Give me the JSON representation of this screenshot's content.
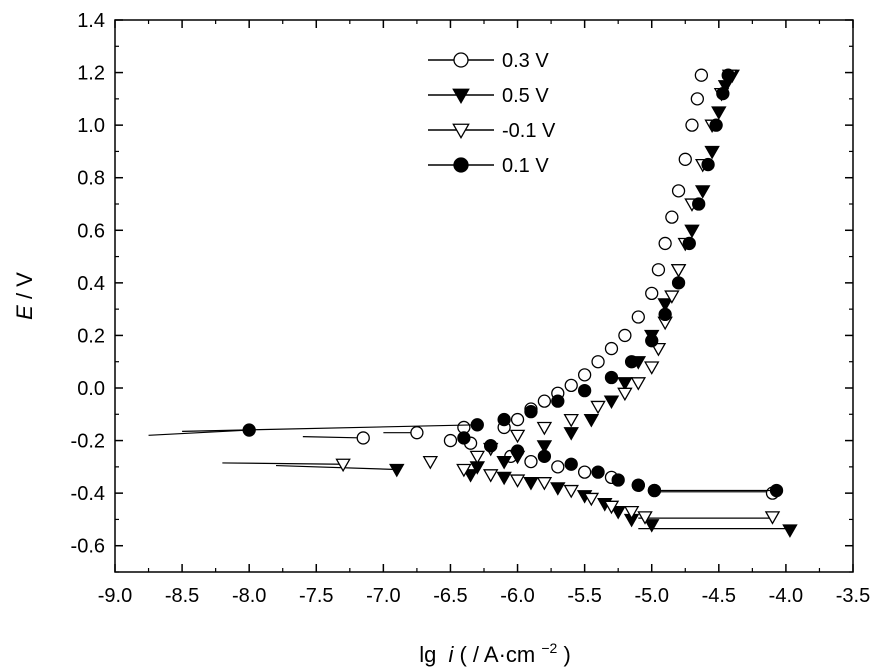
{
  "chart_data": {
    "type": "scatter",
    "xlabel_prefix": "lg",
    "xlabel_mid": "( / A·cm",
    "xlabel_sup": "−2",
    "xlabel_suffix": ")",
    "ylabel_italic": "E",
    "ylabel_rest": " / V",
    "xlim": [
      -9.0,
      -3.5
    ],
    "ylim": [
      -0.7,
      1.4
    ],
    "x_ticks": [
      "-9.0",
      "-8.5",
      "-8.0",
      "-7.5",
      "-7.0",
      "-6.5",
      "-6.0",
      "-5.5",
      "-5.0",
      "-4.5",
      "-4.0",
      "-3.5"
    ],
    "y_ticks": [
      "-0.6",
      "-0.4",
      "-0.2",
      "0.0",
      "0.2",
      "0.4",
      "0.6",
      "0.8",
      "1.0",
      "1.2",
      "1.4"
    ],
    "legend_position": "top-center",
    "series": [
      {
        "name": "0.3 V",
        "marker": "circle-open",
        "points": [
          [
            -7.15,
            -0.19
          ],
          [
            -6.75,
            -0.17
          ],
          [
            -6.5,
            -0.2
          ],
          [
            -6.4,
            -0.15
          ],
          [
            -6.35,
            -0.21
          ],
          [
            -6.1,
            -0.15
          ],
          [
            -6.0,
            -0.12
          ],
          [
            -5.9,
            -0.08
          ],
          [
            -5.8,
            -0.05
          ],
          [
            -5.7,
            -0.02
          ],
          [
            -5.6,
            0.01
          ],
          [
            -5.5,
            0.05
          ],
          [
            -5.4,
            0.1
          ],
          [
            -5.3,
            0.15
          ],
          [
            -5.2,
            0.2
          ],
          [
            -5.1,
            0.27
          ],
          [
            -5.0,
            0.36
          ],
          [
            -4.95,
            0.45
          ],
          [
            -4.9,
            0.55
          ],
          [
            -4.85,
            0.65
          ],
          [
            -4.8,
            0.75
          ],
          [
            -4.75,
            0.87
          ],
          [
            -4.7,
            1.0
          ],
          [
            -4.66,
            1.1
          ],
          [
            -4.63,
            1.19
          ],
          [
            -6.2,
            -0.22
          ],
          [
            -6.05,
            -0.26
          ],
          [
            -5.9,
            -0.28
          ],
          [
            -5.7,
            -0.3
          ],
          [
            -5.5,
            -0.32
          ],
          [
            -5.3,
            -0.34
          ],
          [
            -5.1,
            -0.37
          ],
          [
            -4.98,
            -0.39
          ],
          [
            -4.1,
            -0.4
          ]
        ],
        "tails": [
          {
            "x0": -7.6,
            "y0": -0.185,
            "x1": -7.15,
            "y1": -0.19
          },
          {
            "x0": -7.0,
            "y0": -0.17,
            "x1": -6.75,
            "y1": -0.17
          },
          {
            "x0": -4.98,
            "y0": -0.395,
            "x1": -4.08,
            "y1": -0.395
          }
        ]
      },
      {
        "name": "0.5 V",
        "marker": "triangle-down-filled",
        "points": [
          [
            -6.9,
            -0.31
          ],
          [
            -6.35,
            -0.33
          ],
          [
            -6.3,
            -0.3
          ],
          [
            -6.1,
            -0.28
          ],
          [
            -6.0,
            -0.26
          ],
          [
            -5.8,
            -0.22
          ],
          [
            -5.6,
            -0.17
          ],
          [
            -5.45,
            -0.12
          ],
          [
            -5.3,
            -0.05
          ],
          [
            -5.2,
            0.02
          ],
          [
            -5.1,
            0.1
          ],
          [
            -5.0,
            0.2
          ],
          [
            -4.9,
            0.32
          ],
          [
            -4.8,
            0.45
          ],
          [
            -4.7,
            0.6
          ],
          [
            -4.62,
            0.75
          ],
          [
            -4.55,
            0.9
          ],
          [
            -4.5,
            1.05
          ],
          [
            -4.45,
            1.15
          ],
          [
            -4.4,
            1.19
          ],
          [
            -6.1,
            -0.34
          ],
          [
            -5.9,
            -0.36
          ],
          [
            -5.7,
            -0.38
          ],
          [
            -5.5,
            -0.41
          ],
          [
            -5.35,
            -0.44
          ],
          [
            -5.25,
            -0.47
          ],
          [
            -5.15,
            -0.5
          ],
          [
            -5.0,
            -0.52
          ],
          [
            -3.97,
            -0.54
          ]
        ],
        "tails": [
          {
            "x0": -7.8,
            "y0": -0.295,
            "x1": -6.9,
            "y1": -0.31
          },
          {
            "x0": -5.1,
            "y0": -0.535,
            "x1": -3.97,
            "y1": -0.535
          }
        ]
      },
      {
        "name": "-0.1 V",
        "marker": "triangle-down-open",
        "points": [
          [
            -7.3,
            -0.29
          ],
          [
            -6.65,
            -0.28
          ],
          [
            -6.4,
            -0.31
          ],
          [
            -6.2,
            -0.33
          ],
          [
            -6.0,
            -0.35
          ],
          [
            -5.8,
            -0.36
          ],
          [
            -5.6,
            -0.39
          ],
          [
            -5.45,
            -0.42
          ],
          [
            -5.3,
            -0.45
          ],
          [
            -5.15,
            -0.47
          ],
          [
            -5.05,
            -0.49
          ],
          [
            -4.1,
            -0.49
          ],
          [
            -6.3,
            -0.26
          ],
          [
            -6.2,
            -0.23
          ],
          [
            -6.0,
            -0.18
          ],
          [
            -5.8,
            -0.15
          ],
          [
            -5.6,
            -0.12
          ],
          [
            -5.4,
            -0.07
          ],
          [
            -5.2,
            -0.02
          ],
          [
            -5.1,
            0.02
          ],
          [
            -5.0,
            0.08
          ],
          [
            -4.95,
            0.15
          ],
          [
            -4.9,
            0.25
          ],
          [
            -4.85,
            0.35
          ],
          [
            -4.8,
            0.45
          ],
          [
            -4.75,
            0.55
          ],
          [
            -4.7,
            0.7
          ],
          [
            -4.62,
            0.85
          ],
          [
            -4.55,
            1.0
          ],
          [
            -4.48,
            1.12
          ],
          [
            -4.42,
            1.19
          ]
        ],
        "tails": [
          {
            "x0": -8.2,
            "y0": -0.285,
            "x1": -7.3,
            "y1": -0.29
          },
          {
            "x0": -5.1,
            "y0": -0.495,
            "x1": -4.1,
            "y1": -0.495
          }
        ]
      },
      {
        "name": "0.1 V",
        "marker": "circle-filled",
        "points": [
          [
            -8.0,
            -0.16
          ],
          [
            -6.3,
            -0.14
          ],
          [
            -6.1,
            -0.12
          ],
          [
            -5.9,
            -0.09
          ],
          [
            -5.7,
            -0.05
          ],
          [
            -5.5,
            -0.01
          ],
          [
            -5.3,
            0.04
          ],
          [
            -5.15,
            0.1
          ],
          [
            -5.0,
            0.18
          ],
          [
            -4.9,
            0.28
          ],
          [
            -4.8,
            0.4
          ],
          [
            -4.72,
            0.55
          ],
          [
            -4.65,
            0.7
          ],
          [
            -4.58,
            0.85
          ],
          [
            -4.52,
            1.0
          ],
          [
            -4.47,
            1.12
          ],
          [
            -4.43,
            1.19
          ],
          [
            -6.4,
            -0.19
          ],
          [
            -6.2,
            -0.22
          ],
          [
            -6.0,
            -0.24
          ],
          [
            -5.8,
            -0.26
          ],
          [
            -5.6,
            -0.29
          ],
          [
            -5.4,
            -0.32
          ],
          [
            -5.25,
            -0.35
          ],
          [
            -5.1,
            -0.37
          ],
          [
            -4.98,
            -0.39
          ],
          [
            -4.07,
            -0.39
          ]
        ],
        "tails": [
          {
            "x0": -8.75,
            "y0": -0.18,
            "x1": -8.0,
            "y1": -0.16
          },
          {
            "x0": -8.5,
            "y0": -0.165,
            "x1": -6.3,
            "y1": -0.14
          },
          {
            "x0": -4.98,
            "y0": -0.39,
            "x1": -4.07,
            "y1": -0.39
          }
        ]
      }
    ]
  }
}
